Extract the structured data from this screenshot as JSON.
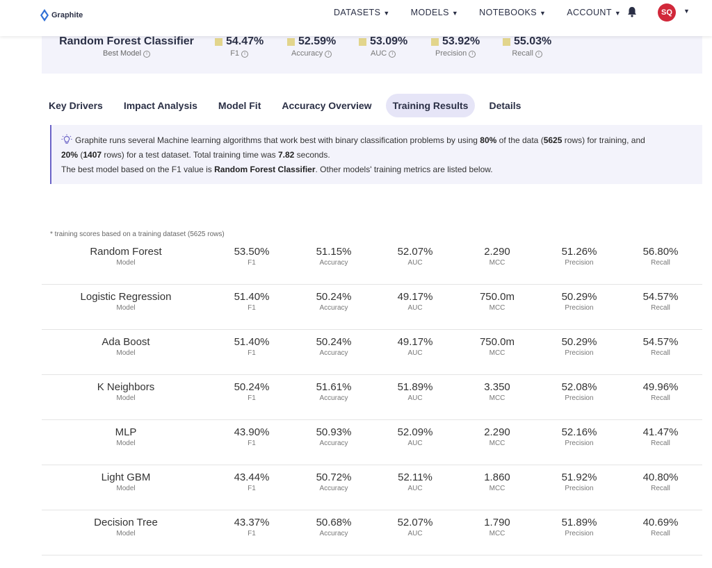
{
  "brand": {
    "name": "Graphite"
  },
  "nav": {
    "items": [
      {
        "label": "DATASETS"
      },
      {
        "label": "MODELS"
      },
      {
        "label": "NOTEBOOKS"
      },
      {
        "label": "ACCOUNT"
      }
    ],
    "avatar_initials": "SQ"
  },
  "summary": {
    "best_model_name": "Random Forest Classifier",
    "best_model_label": "Best Model",
    "metrics": [
      {
        "value": "54.47%",
        "label": "F1"
      },
      {
        "value": "52.59%",
        "label": "Accuracy"
      },
      {
        "value": "53.09%",
        "label": "AUC"
      },
      {
        "value": "53.92%",
        "label": "Precision"
      },
      {
        "value": "55.03%",
        "label": "Recall"
      }
    ]
  },
  "tabs": [
    {
      "label": "Key Drivers",
      "active": false
    },
    {
      "label": "Impact Analysis",
      "active": false
    },
    {
      "label": "Model Fit",
      "active": false
    },
    {
      "label": "Accuracy Overview",
      "active": false
    },
    {
      "label": "Training Results",
      "active": true
    },
    {
      "label": "Details",
      "active": false
    }
  ],
  "info": {
    "p1_a": "Graphite runs several Machine learning algorithms that work best with binary classification problems by using ",
    "train_pct": "80%",
    "p1_b": " of the data (",
    "train_rows": "5625",
    "p1_c": " rows) for training, and",
    "test_pct": "20%",
    "p2_a": " (",
    "test_rows": "1407",
    "p2_b": " rows) for a test dataset. Total training time was ",
    "train_time": "7.82",
    "p2_c": " seconds.",
    "p3_a": "The best model based on the F1 value is ",
    "best_model": "Random Forest Classifier",
    "p3_b": ". Other models' training metrics are listed below."
  },
  "table": {
    "note": "* training scores based on a training dataset (5625 rows)",
    "name_label": "Model",
    "metric_labels": {
      "f1": "F1",
      "accuracy": "Accuracy",
      "auc": "AUC",
      "mcc": "MCC",
      "precision": "Precision",
      "recall": "Recall"
    },
    "rows": [
      {
        "name": "Random Forest",
        "f1": "53.50%",
        "accuracy": "51.15%",
        "auc": "52.07%",
        "mcc": "2.290",
        "precision": "51.26%",
        "recall": "56.80%"
      },
      {
        "name": "Logistic Regression",
        "f1": "51.40%",
        "accuracy": "50.24%",
        "auc": "49.17%",
        "mcc": "750.0m",
        "precision": "50.29%",
        "recall": "54.57%"
      },
      {
        "name": "Ada Boost",
        "f1": "51.40%",
        "accuracy": "50.24%",
        "auc": "49.17%",
        "mcc": "750.0m",
        "precision": "50.29%",
        "recall": "54.57%"
      },
      {
        "name": "K Neighbors",
        "f1": "50.24%",
        "accuracy": "51.61%",
        "auc": "51.89%",
        "mcc": "3.350",
        "precision": "52.08%",
        "recall": "49.96%"
      },
      {
        "name": "MLP",
        "f1": "43.90%",
        "accuracy": "50.93%",
        "auc": "52.09%",
        "mcc": "2.290",
        "precision": "52.16%",
        "recall": "41.47%"
      },
      {
        "name": "Light GBM",
        "f1": "43.44%",
        "accuracy": "50.72%",
        "auc": "52.11%",
        "mcc": "1.860",
        "precision": "51.92%",
        "recall": "40.80%"
      },
      {
        "name": "Decision Tree",
        "f1": "43.37%",
        "accuracy": "50.68%",
        "auc": "52.07%",
        "mcc": "1.790",
        "precision": "51.89%",
        "recall": "40.69%"
      }
    ]
  },
  "colors": {
    "accent": "#6b63c7",
    "avatar": "#d1283a",
    "metric_swatch": "#e2d58c",
    "active_tab": "#e6e5f7"
  },
  "icons": [
    "graphite-logo-icon",
    "bell-icon",
    "info-icon",
    "lightbulb-icon",
    "caret-down-icon"
  ]
}
